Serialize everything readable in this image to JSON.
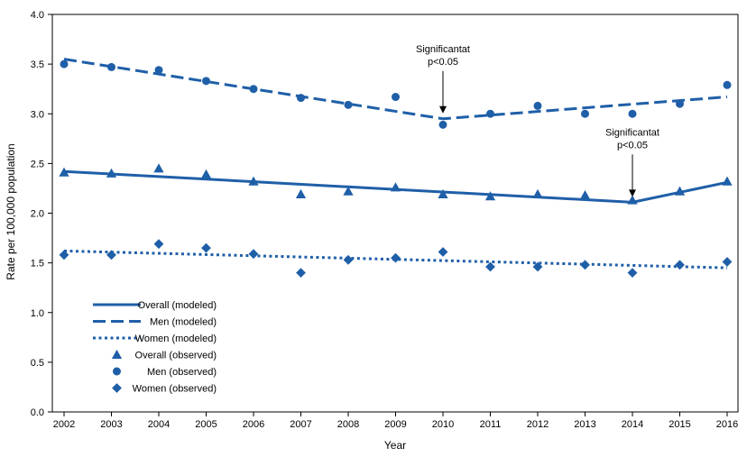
{
  "chart_data": {
    "type": "line",
    "title": "",
    "xlabel": "Year",
    "ylabel": "Rate per 100,000 population",
    "x": [
      2002,
      2003,
      2004,
      2005,
      2006,
      2007,
      2008,
      2009,
      2010,
      2011,
      2012,
      2013,
      2014,
      2015,
      2016
    ],
    "xticks": [
      "2002",
      "2003",
      "2004",
      "2005",
      "2006",
      "2007",
      "2008",
      "2009",
      "2010",
      "2011",
      "2012",
      "2013",
      "2014",
      "2015",
      "2016"
    ],
    "ylim": [
      0,
      4.0
    ],
    "yticks": [
      "0.0",
      "0.5",
      "1.0",
      "1.5",
      "2.0",
      "2.5",
      "3.0",
      "3.5",
      "4.0"
    ],
    "series": [
      {
        "name": "Overall (modeled)",
        "kind": "line",
        "dash": "solid",
        "x": [
          2002,
          2014,
          2016
        ],
        "values": [
          2.42,
          2.11,
          2.31
        ]
      },
      {
        "name": "Men (modeled)",
        "kind": "line",
        "dash": "dashed",
        "x": [
          2002,
          2010,
          2016
        ],
        "values": [
          3.55,
          2.95,
          3.17
        ]
      },
      {
        "name": "Women (modeled)",
        "kind": "line",
        "dash": "dotted",
        "x": [
          2002,
          2016
        ],
        "values": [
          1.62,
          1.45
        ]
      },
      {
        "name": "Overall (observed)",
        "kind": "scatter",
        "marker": "triangle",
        "values": [
          2.41,
          2.4,
          2.45,
          2.39,
          2.32,
          2.19,
          2.22,
          2.26,
          2.19,
          2.17,
          2.19,
          2.18,
          2.13,
          2.22,
          2.32
        ]
      },
      {
        "name": "Men (observed)",
        "kind": "scatter",
        "marker": "circle",
        "values": [
          3.5,
          3.47,
          3.44,
          3.33,
          3.25,
          3.16,
          3.09,
          3.17,
          2.89,
          3.0,
          3.08,
          3.0,
          3.0,
          3.1,
          3.29
        ]
      },
      {
        "name": "Women (observed)",
        "kind": "scatter",
        "marker": "diamond",
        "values": [
          1.58,
          1.58,
          1.69,
          1.65,
          1.59,
          1.4,
          1.53,
          1.55,
          1.61,
          1.46,
          1.46,
          1.48,
          1.4,
          1.48,
          1.51
        ]
      }
    ],
    "annotations": [
      {
        "line1": "Significantat",
        "line2": "p<0.05",
        "x": 2010,
        "y": 2.95
      },
      {
        "line1": "Significantat",
        "line2": "p<0.05",
        "x": 2014,
        "y": 2.11
      }
    ],
    "legend_position": "bottom-left",
    "color": "#1f5fa8"
  }
}
